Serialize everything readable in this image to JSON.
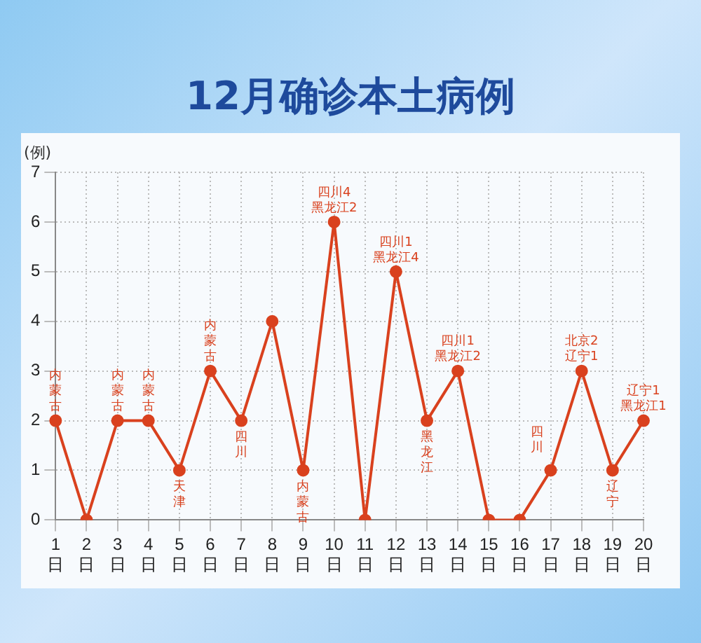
{
  "chart_data": {
    "type": "line",
    "title": "12月确诊本土病例",
    "ylabel": "(例)",
    "categories": [
      "1日",
      "2日",
      "3日",
      "4日",
      "5日",
      "6日",
      "7日",
      "8日",
      "9日",
      "10日",
      "11日",
      "12日",
      "13日",
      "14日",
      "15日",
      "16日",
      "17日",
      "18日",
      "19日",
      "20日"
    ],
    "series": [
      {
        "color": "#d9411e",
        "values": [
          2,
          0,
          2,
          2,
          1,
          3,
          2,
          4,
          1,
          6,
          0,
          5,
          2,
          3,
          0,
          0,
          1,
          3,
          1,
          2
        ]
      }
    ],
    "ylim": [
      0,
      7
    ],
    "yticks": [
      0,
      1,
      2,
      3,
      4,
      5,
      6,
      7
    ],
    "grid": true,
    "legend": false,
    "marker": "circle",
    "line_style": "solid",
    "annotations": [
      {
        "text": "内蒙古",
        "x": "1日",
        "y": 2
      },
      {
        "text": "内蒙古",
        "x": "3日",
        "y": 2
      },
      {
        "text": "内蒙古",
        "x": "4日",
        "y": 2
      },
      {
        "text": "天津",
        "x": "5日",
        "y": 1
      },
      {
        "text": "内蒙古",
        "x": "6日",
        "y": 3
      },
      {
        "text": "四川",
        "x": "7日",
        "y": 2
      },
      {
        "text": "内蒙古",
        "x": "9日",
        "y": 1
      },
      {
        "text": "四川4\n黑龙江2",
        "x": "10日",
        "y": 6
      },
      {
        "text": "四川1\n黑龙江4",
        "x": "12日",
        "y": 5
      },
      {
        "text": "黑龙江",
        "x": "13日",
        "y": 2
      },
      {
        "text": "四川1\n黑龙江2",
        "x": "14日",
        "y": 3
      },
      {
        "text": "四川",
        "x": "17日",
        "y": 1
      },
      {
        "text": "北京2\n辽宁1",
        "x": "18日",
        "y": 3
      },
      {
        "text": "辽宁",
        "x": "19日",
        "y": 1
      },
      {
        "text": "辽宁1\n黑龙江1",
        "x": "20日",
        "y": 2
      }
    ]
  }
}
